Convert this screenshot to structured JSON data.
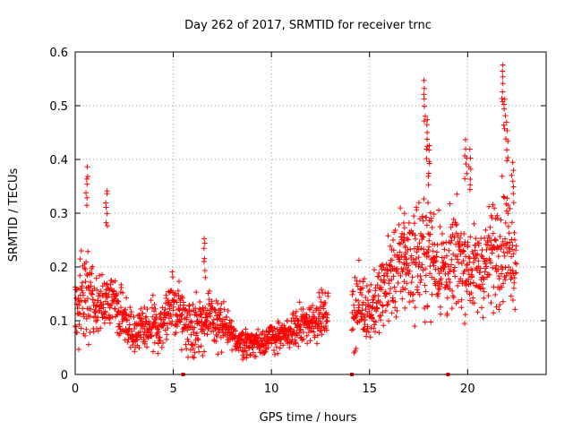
{
  "chart_data": {
    "type": "scatter",
    "title": "Day 262 of 2017, SRMTID for receiver trnc",
    "xlabel": "GPS time / hours",
    "ylabel": "SRMTID / TECUs",
    "xlim": [
      0,
      24
    ],
    "ylim": [
      0,
      0.6
    ],
    "x_ticks": [
      "0",
      "5",
      "10",
      "15",
      "20"
    ],
    "x_tick_values": [
      0,
      5,
      10,
      15,
      20
    ],
    "y_ticks": [
      "0",
      "0.1",
      "0.2",
      "0.3",
      "0.4",
      "0.5",
      "0.6"
    ],
    "y_tick_values": [
      0,
      0.1,
      0.2,
      0.3,
      0.4,
      0.5,
      0.6
    ],
    "grid": true,
    "marker": "+",
    "color": "#ff0000",
    "series": [
      {
        "name": "SRMTID",
        "profile_x": [
          0,
          0.3,
          0.6,
          1.0,
          1.5,
          2.0,
          2.5,
          3.0,
          3.5,
          4.0,
          4.5,
          5.0,
          5.3,
          5.6,
          6.0,
          6.5,
          7.0,
          7.5,
          8.0,
          8.5,
          9.0,
          9.5,
          10.0,
          10.5,
          11.0,
          11.5,
          12.0,
          12.5,
          12.8,
          14.2,
          14.5,
          15.0,
          15.5,
          16.0,
          16.5,
          17.0,
          17.5,
          18.0,
          18.5,
          19.0,
          19.5,
          20.0,
          20.5,
          21.0,
          21.5,
          22.0,
          22.5
        ],
        "profile_median": [
          0.12,
          0.14,
          0.15,
          0.12,
          0.13,
          0.14,
          0.1,
          0.08,
          0.08,
          0.09,
          0.1,
          0.13,
          0.12,
          0.1,
          0.09,
          0.1,
          0.1,
          0.09,
          0.07,
          0.06,
          0.06,
          0.06,
          0.07,
          0.07,
          0.08,
          0.09,
          0.1,
          0.11,
          0.11,
          0.12,
          0.13,
          0.12,
          0.14,
          0.18,
          0.2,
          0.21,
          0.22,
          0.23,
          0.21,
          0.19,
          0.22,
          0.2,
          0.19,
          0.21,
          0.24,
          0.25,
          0.21
        ],
        "profile_spread": [
          0.04,
          0.06,
          0.07,
          0.04,
          0.04,
          0.04,
          0.04,
          0.03,
          0.03,
          0.04,
          0.04,
          0.04,
          0.04,
          0.04,
          0.04,
          0.04,
          0.04,
          0.04,
          0.02,
          0.02,
          0.02,
          0.02,
          0.02,
          0.02,
          0.02,
          0.03,
          0.03,
          0.03,
          0.03,
          0.05,
          0.05,
          0.04,
          0.05,
          0.06,
          0.07,
          0.07,
          0.08,
          0.08,
          0.07,
          0.07,
          0.07,
          0.06,
          0.06,
          0.07,
          0.08,
          0.08,
          0.06
        ],
        "peaks": [
          {
            "x": 0.6,
            "y": 0.39
          },
          {
            "x": 1.6,
            "y": 0.35
          },
          {
            "x": 6.6,
            "y": 0.26
          },
          {
            "x": 16.8,
            "y": 0.3
          },
          {
            "x": 17.8,
            "y": 0.55
          },
          {
            "x": 17.9,
            "y": 0.48
          },
          {
            "x": 18.0,
            "y": 0.43
          },
          {
            "x": 19.9,
            "y": 0.44
          },
          {
            "x": 20.1,
            "y": 0.42
          },
          {
            "x": 21.8,
            "y": 0.58
          },
          {
            "x": 21.9,
            "y": 0.52
          },
          {
            "x": 22.0,
            "y": 0.47
          },
          {
            "x": 22.3,
            "y": 0.4
          }
        ],
        "gap_hours": [
          12.9,
          14.1
        ],
        "baseline_markers_x": [
          5.5,
          14.1,
          19.0
        ]
      }
    ]
  }
}
